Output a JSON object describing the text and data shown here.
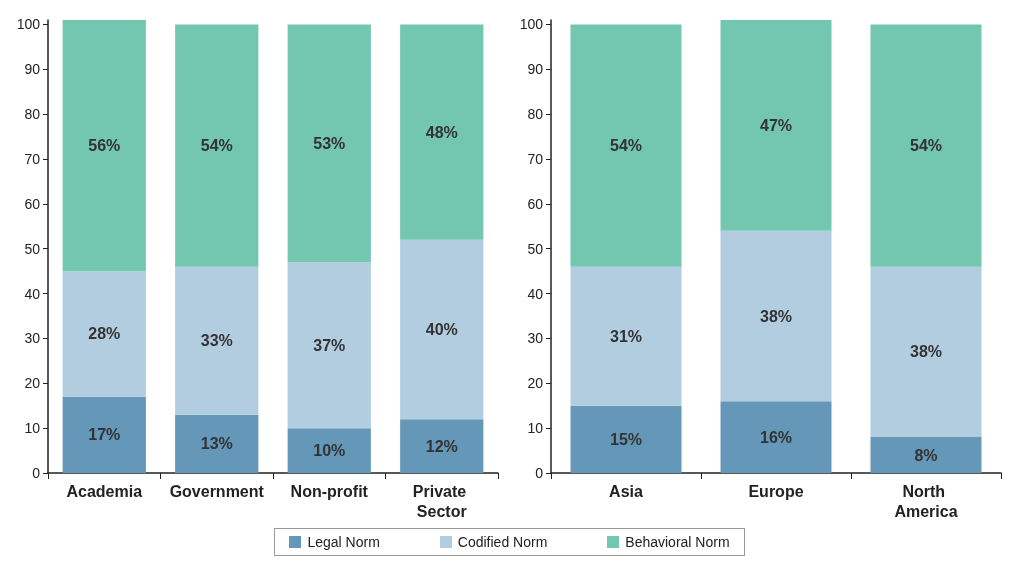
{
  "chart_data": [
    {
      "type": "bar",
      "stacked": true,
      "categories": [
        "Academia",
        "Government",
        "Non-profit",
        "Private Sector"
      ],
      "ylim": [
        0,
        101
      ],
      "yticks": [
        0,
        10,
        20,
        30,
        40,
        50,
        60,
        70,
        80,
        90,
        100
      ],
      "grid": false,
      "legend": "bottom",
      "series": [
        {
          "name": "Legal Norm",
          "color": "#6497b8",
          "values": [
            17,
            13,
            10,
            12
          ],
          "value_labels": [
            "17%",
            "13%",
            "10%",
            "12%"
          ]
        },
        {
          "name": "Codified Norm",
          "color": "#b3cde0",
          "values": [
            28,
            33,
            37,
            40
          ],
          "value_labels": [
            "28%",
            "33%",
            "37%",
            "40%"
          ]
        },
        {
          "name": "Behavioral Norm",
          "color": "#73c6b0",
          "values": [
            56,
            54,
            53,
            48
          ],
          "value_labels": [
            "56%",
            "54%",
            "53%",
            "48%"
          ]
        }
      ]
    },
    {
      "type": "bar",
      "stacked": true,
      "categories": [
        "Asia",
        "Europe",
        "North America"
      ],
      "ylim": [
        0,
        101
      ],
      "yticks": [
        0,
        10,
        20,
        30,
        40,
        50,
        60,
        70,
        80,
        90,
        100
      ],
      "grid": false,
      "series": [
        {
          "color": "#6497b8",
          "values": [
            15,
            16,
            8
          ],
          "value_labels": [
            "15%",
            "16%",
            "8%"
          ]
        },
        {
          "color": "#b3cde0",
          "values": [
            31,
            38,
            38
          ],
          "value_labels": [
            "31%",
            "38%",
            "38%"
          ]
        },
        {
          "color": "#73c6b0",
          "values": [
            54,
            47,
            54
          ],
          "value_labels": [
            "54%",
            "47%",
            "54%"
          ]
        }
      ]
    }
  ]
}
